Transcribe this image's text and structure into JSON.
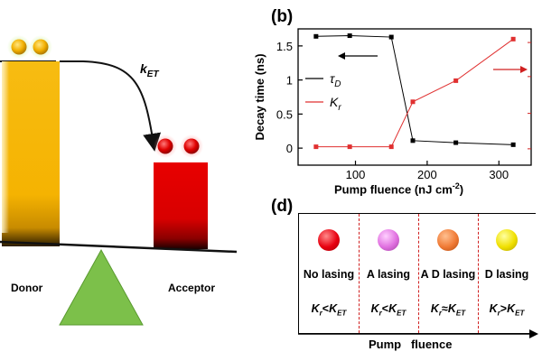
{
  "panel_a": {
    "donor_label": "Donor",
    "acceptor_label": "Acceptor",
    "rate_label": "k",
    "rate_sub": "ET",
    "colors": {
      "donor": "#F5B301",
      "acceptor": "#E00000",
      "triangle": "#7CC04A"
    }
  },
  "panel_b": {
    "label": "(b)"
  },
  "panel_d": {
    "label": "(d)",
    "xlabel": "Pump   fluence",
    "cells": [
      {
        "dot_color": "#E80010",
        "label": "No lasing",
        "rel_left": "K",
        "rel_left_sub": "r",
        "rel_op": "<",
        "rel_right": "K",
        "rel_right_sub": "ET"
      },
      {
        "dot_color": "#E070E0",
        "label": "A  lasing",
        "rel_left": "K",
        "rel_left_sub": "r",
        "rel_op": "<",
        "rel_right": "K",
        "rel_right_sub": "ET"
      },
      {
        "dot_color": "#F07A35",
        "label": "A D lasing",
        "rel_left": "K",
        "rel_left_sub": "r",
        "rel_op": "≈",
        "rel_right": "K",
        "rel_right_sub": "ET"
      },
      {
        "dot_color": "#F0E000",
        "label": "D lasing",
        "rel_left": "K",
        "rel_left_sub": "r",
        "rel_op": ">",
        "rel_right": "K",
        "rel_right_sub": "ET"
      }
    ]
  },
  "chart_data": {
    "type": "line",
    "xlabel": "Pump   fluence (nJ cm",
    "xlabel_sup": "-2",
    "xlabel_end": ")",
    "ylabel": "Decay time (ns)",
    "xlim": [
      20,
      345
    ],
    "ylim": [
      -0.25,
      1.75
    ],
    "xticks": [
      100,
      200,
      300
    ],
    "yticks": [
      0,
      0.5,
      1,
      1.5
    ],
    "ytick_labels": [
      "0",
      "0.5",
      "1",
      "1.5"
    ],
    "grid": false,
    "legend_position": "center-left",
    "series": [
      {
        "name": "τ",
        "name_sub": "D",
        "color": "#000000",
        "marker": "square",
        "x": [
          45,
          92,
          150,
          180,
          240,
          320
        ],
        "y": [
          1.64,
          1.65,
          1.63,
          0.11,
          0.08,
          0.05
        ]
      },
      {
        "name": "K",
        "name_sub": "r",
        "color": "#E03030",
        "marker": "square",
        "x": [
          45,
          92,
          150,
          180,
          240,
          320
        ],
        "y": [
          0.02,
          0.02,
          0.02,
          0.68,
          0.99,
          1.6
        ]
      }
    ]
  }
}
